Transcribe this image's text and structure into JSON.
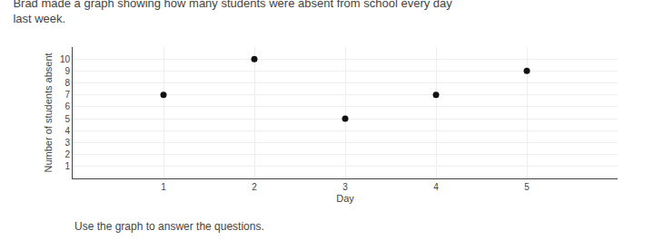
{
  "chart_data": {
    "type": "scatter",
    "title": "Brad made a graph showing how many students were absent from school every day\nlast week.",
    "annotations": [
      "Use the graph to answer the questions."
    ],
    "xlabel": "Day",
    "ylabel": "Number of students absent",
    "x": [
      1,
      2,
      3,
      4,
      5
    ],
    "values": [
      7,
      10,
      5,
      7,
      9
    ],
    "color": "#111111",
    "xlim": [
      0,
      6.0
    ],
    "ylim": [
      0,
      11.0
    ],
    "xticks": [
      1,
      2,
      3,
      4,
      5
    ],
    "yticks": [
      1,
      2,
      3,
      4,
      5,
      6,
      7,
      8,
      9,
      10
    ],
    "grid": true
  }
}
